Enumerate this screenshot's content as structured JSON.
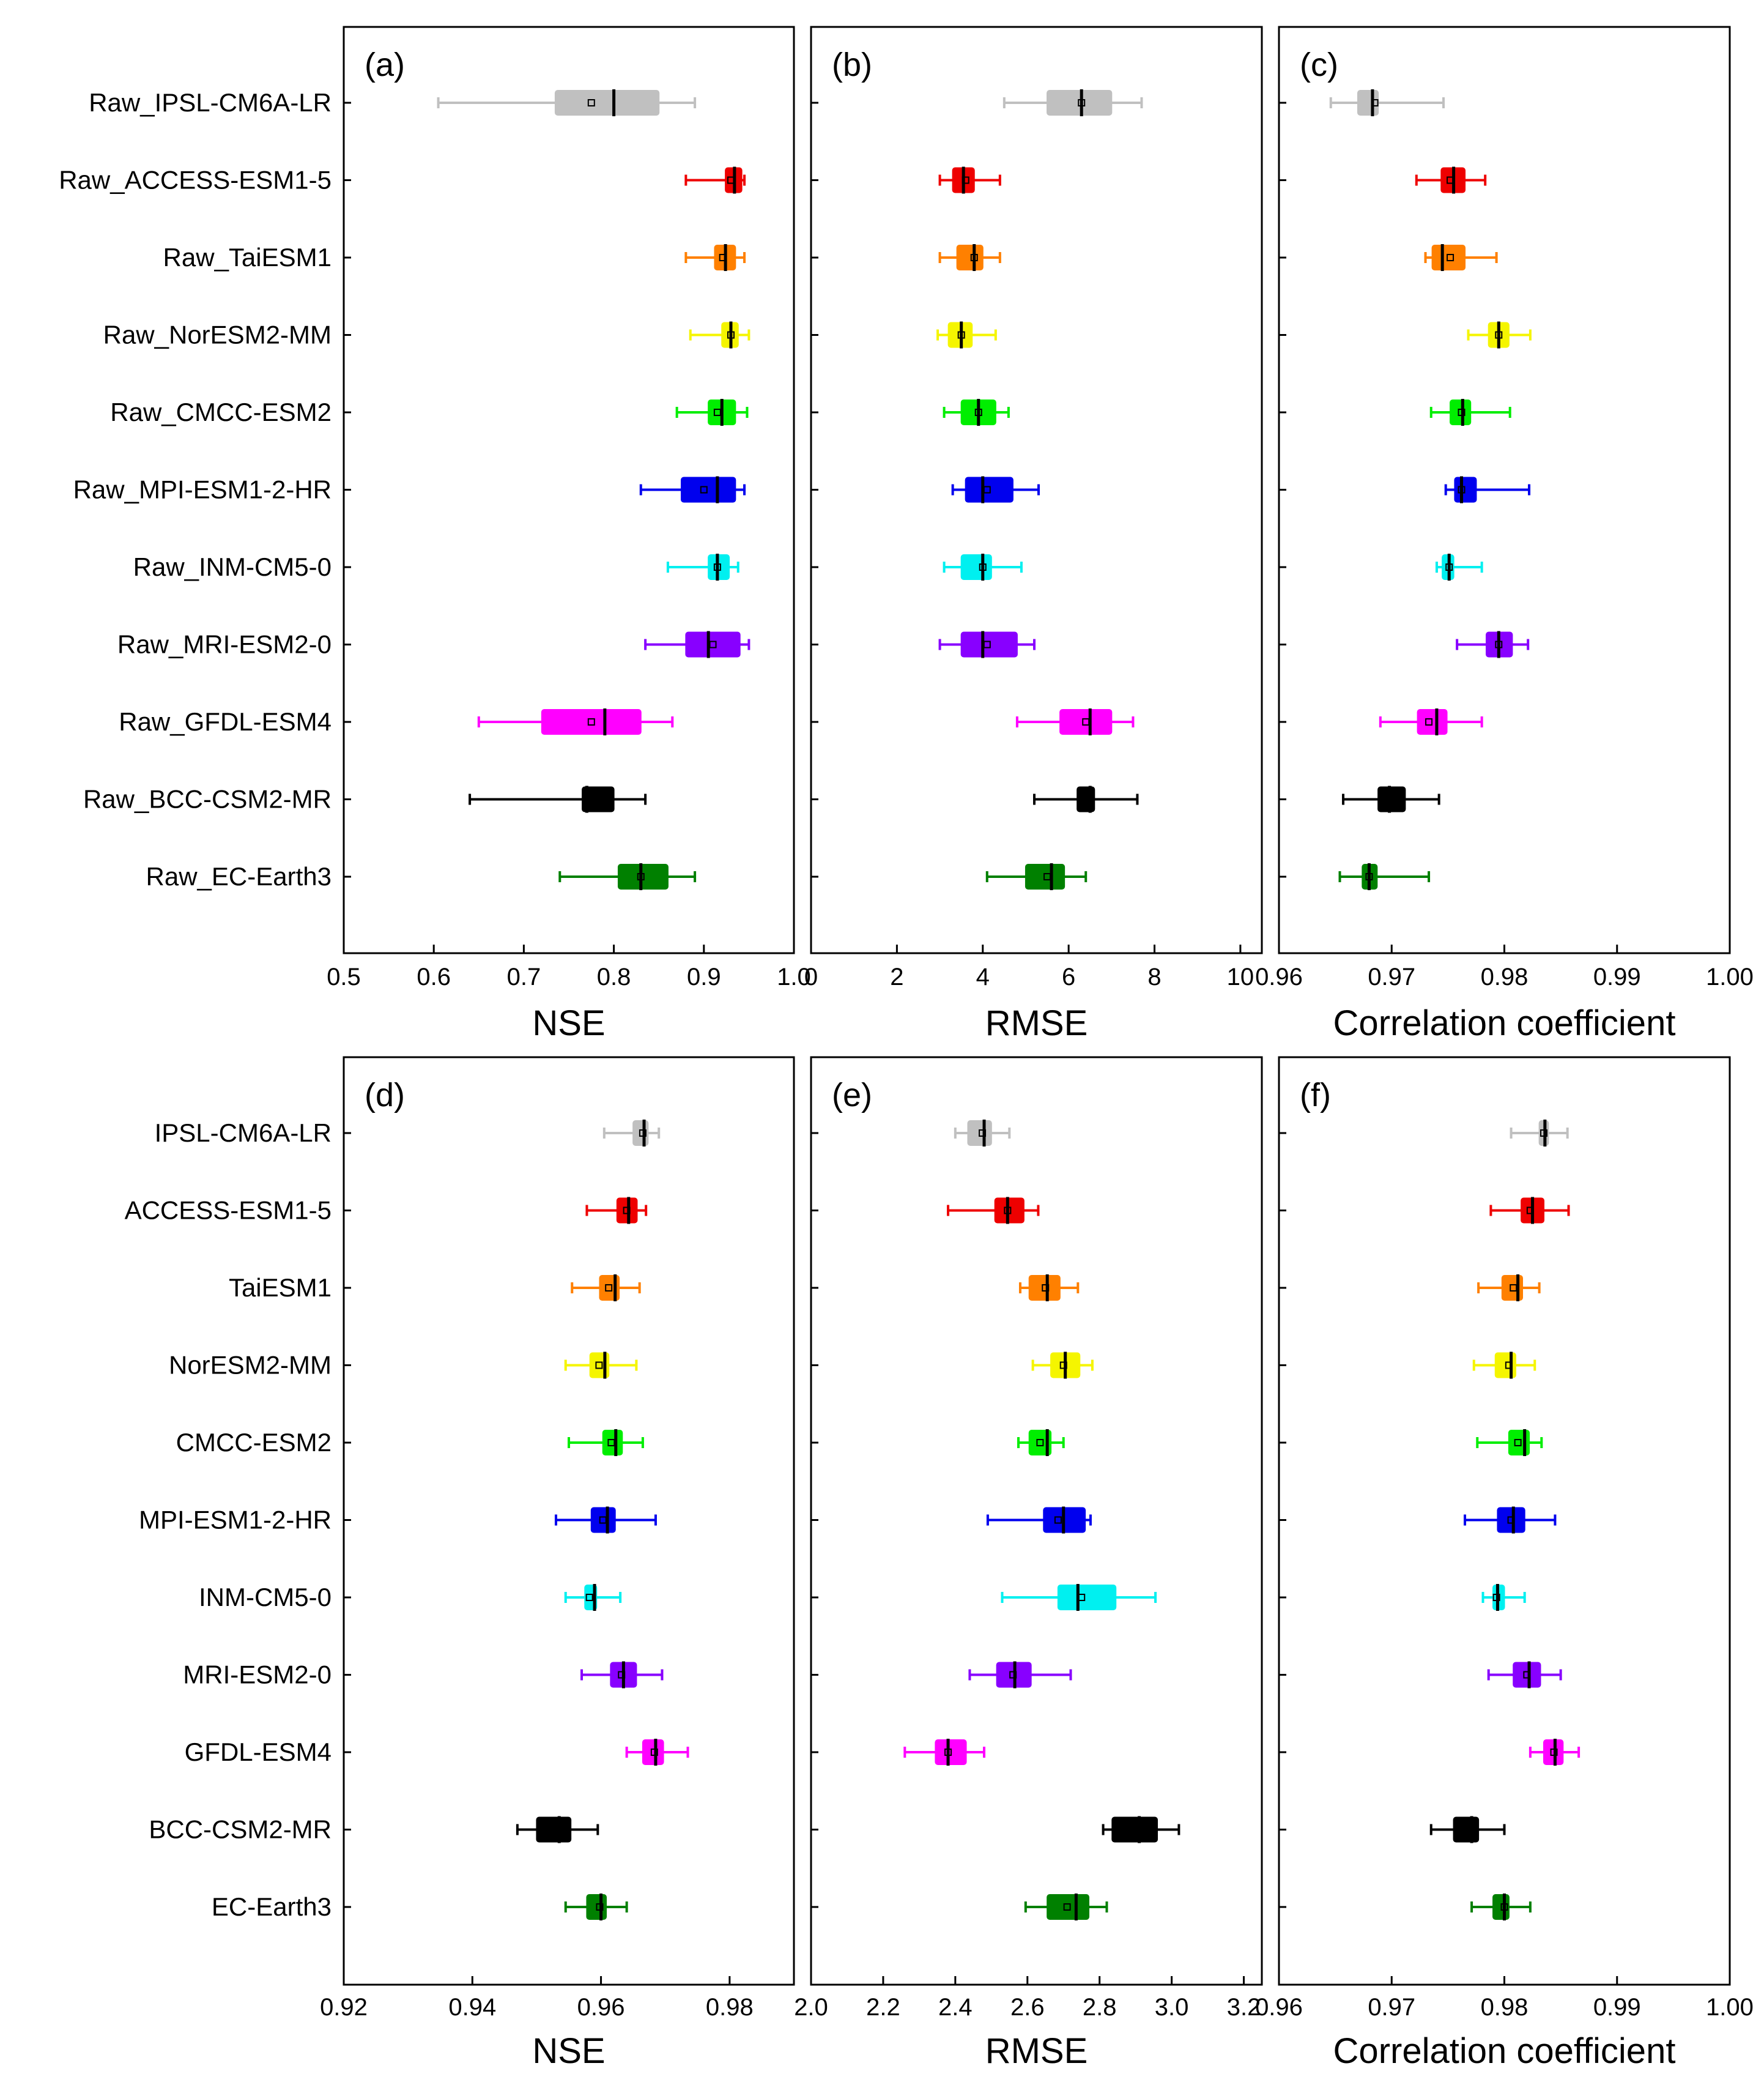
{
  "chart_data": [
    {
      "panel": "(a)",
      "type": "box",
      "xlabel": "NSE",
      "xlim": [
        0.5,
        1.0
      ],
      "ticks": [
        0.5,
        0.6,
        0.7,
        0.8,
        0.9,
        1.0
      ],
      "tick_labels": [
        "0.5",
        "0.6",
        "0.7",
        "0.8",
        "0.9",
        "1.0"
      ],
      "models": [
        {
          "label": "Raw_IPSL-CM6A-LR",
          "color": "#c0c0c0",
          "wlo": 0.605,
          "q1": 0.735,
          "med": 0.8,
          "q3": 0.85,
          "whi": 0.89,
          "mean": 0.775
        },
        {
          "label": "Raw_ACCESS-ESM1-5",
          "color": "#ee0000",
          "wlo": 0.88,
          "q1": 0.924,
          "med": 0.934,
          "q3": 0.942,
          "whi": 0.945,
          "mean": 0.93
        },
        {
          "label": "Raw_TaiESM1",
          "color": "#ff8000",
          "wlo": 0.88,
          "q1": 0.912,
          "med": 0.924,
          "q3": 0.935,
          "whi": 0.945,
          "mean": 0.921
        },
        {
          "label": "Raw_NorESM2-MM",
          "color": "#f5f500",
          "wlo": 0.885,
          "q1": 0.92,
          "med": 0.93,
          "q3": 0.938,
          "whi": 0.95,
          "mean": 0.93
        },
        {
          "label": "Raw_CMCC-ESM2",
          "color": "#00ee00",
          "wlo": 0.87,
          "q1": 0.905,
          "med": 0.92,
          "q3": 0.935,
          "whi": 0.948,
          "mean": 0.915
        },
        {
          "label": "Raw_MPI-ESM1-2-HR",
          "color": "#0000ee",
          "wlo": 0.83,
          "q1": 0.875,
          "med": 0.915,
          "q3": 0.935,
          "whi": 0.945,
          "mean": 0.9
        },
        {
          "label": "Raw_INM-CM5-0",
          "color": "#00f0f0",
          "wlo": 0.86,
          "q1": 0.905,
          "med": 0.915,
          "q3": 0.928,
          "whi": 0.938,
          "mean": 0.915
        },
        {
          "label": "Raw_MRI-ESM2-0",
          "color": "#8800ff",
          "wlo": 0.835,
          "q1": 0.88,
          "med": 0.905,
          "q3": 0.94,
          "whi": 0.95,
          "mean": 0.91
        },
        {
          "label": "Raw_GFDL-ESM4",
          "color": "#ff00ff",
          "wlo": 0.65,
          "q1": 0.72,
          "med": 0.79,
          "q3": 0.83,
          "whi": 0.865,
          "mean": 0.775
        },
        {
          "label": "Raw_BCC-CSM2-MR",
          "color": "#000000",
          "wlo": 0.64,
          "q1": 0.765,
          "med": 0.77,
          "q3": 0.8,
          "whi": 0.835,
          "mean": 0.775
        },
        {
          "label": "Raw_EC-Earth3",
          "color": "#008000",
          "wlo": 0.74,
          "q1": 0.805,
          "med": 0.83,
          "q3": 0.86,
          "whi": 0.89,
          "mean": 0.83
        }
      ]
    },
    {
      "panel": "(b)",
      "type": "box",
      "xlabel": "RMSE",
      "xlim": [
        0,
        10.5
      ],
      "ticks": [
        0,
        2,
        4,
        6,
        8,
        10
      ],
      "tick_labels": [
        "0",
        "2",
        "4",
        "6",
        "8",
        "10"
      ],
      "models": [
        {
          "label": "Raw_IPSL-CM6A-LR",
          "color": "#c0c0c0",
          "wlo": 4.5,
          "q1": 5.5,
          "med": 6.3,
          "q3": 7.0,
          "whi": 7.7,
          "mean": 6.3
        },
        {
          "label": "Raw_ACCESS-ESM1-5",
          "color": "#ee0000",
          "wlo": 3.0,
          "q1": 3.3,
          "med": 3.55,
          "q3": 3.8,
          "whi": 4.4,
          "mean": 3.6
        },
        {
          "label": "Raw_TaiESM1",
          "color": "#ff8000",
          "wlo": 3.0,
          "q1": 3.4,
          "med": 3.8,
          "q3": 4.0,
          "whi": 4.4,
          "mean": 3.8
        },
        {
          "label": "Raw_NorESM2-MM",
          "color": "#f5f500",
          "wlo": 2.95,
          "q1": 3.2,
          "med": 3.5,
          "q3": 3.75,
          "whi": 4.3,
          "mean": 3.5
        },
        {
          "label": "Raw_CMCC-ESM2",
          "color": "#00ee00",
          "wlo": 3.1,
          "q1": 3.5,
          "med": 3.9,
          "q3": 4.3,
          "whi": 4.6,
          "mean": 3.9
        },
        {
          "label": "Raw_MPI-ESM1-2-HR",
          "color": "#0000ee",
          "wlo": 3.3,
          "q1": 3.6,
          "med": 4.0,
          "q3": 4.7,
          "whi": 5.3,
          "mean": 4.1
        },
        {
          "label": "Raw_INM-CM5-0",
          "color": "#00f0f0",
          "wlo": 3.1,
          "q1": 3.5,
          "med": 4.0,
          "q3": 4.2,
          "whi": 4.9,
          "mean": 4.0
        },
        {
          "label": "Raw_MRI-ESM2-0",
          "color": "#8800ff",
          "wlo": 3.0,
          "q1": 3.5,
          "med": 4.0,
          "q3": 4.8,
          "whi": 5.2,
          "mean": 4.1
        },
        {
          "label": "Raw_GFDL-ESM4",
          "color": "#ff00ff",
          "wlo": 4.8,
          "q1": 5.8,
          "med": 6.5,
          "q3": 7.0,
          "whi": 7.5,
          "mean": 6.4
        },
        {
          "label": "Raw_BCC-CSM2-MR",
          "color": "#000000",
          "wlo": 5.2,
          "q1": 6.2,
          "med": 6.5,
          "q3": 6.6,
          "whi": 7.6,
          "mean": 6.4
        },
        {
          "label": "Raw_EC-Earth3",
          "color": "#008000",
          "wlo": 4.1,
          "q1": 5.0,
          "med": 5.6,
          "q3": 5.9,
          "whi": 6.4,
          "mean": 5.5
        }
      ]
    },
    {
      "panel": "(c)",
      "type": "box",
      "xlabel": "Correlation coefficient",
      "xlim": [
        0.96,
        1.0
      ],
      "ticks": [
        0.96,
        0.97,
        0.98,
        0.99,
        1.0
      ],
      "tick_labels": [
        "0.96",
        "0.97",
        "0.98",
        "0.99",
        "1.00"
      ],
      "models": [
        {
          "label": "Raw_IPSL-CM6A-LR",
          "color": "#c0c0c0",
          "wlo": 0.9646,
          "q1": 0.967,
          "med": 0.9683,
          "q3": 0.9688,
          "whi": 0.9746,
          "mean": 0.9685
        },
        {
          "label": "Raw_ACCESS-ESM1-5",
          "color": "#ee0000",
          "wlo": 0.9722,
          "q1": 0.9744,
          "med": 0.9755,
          "q3": 0.9765,
          "whi": 0.9783,
          "mean": 0.9752
        },
        {
          "label": "Raw_TaiESM1",
          "color": "#ff8000",
          "wlo": 0.973,
          "q1": 0.9736,
          "med": 0.9745,
          "q3": 0.9765,
          "whi": 0.9793,
          "mean": 0.9752
        },
        {
          "label": "Raw_NorESM2-MM",
          "color": "#f5f500",
          "wlo": 0.9768,
          "q1": 0.9786,
          "med": 0.9795,
          "q3": 0.9804,
          "whi": 0.9823,
          "mean": 0.9795
        },
        {
          "label": "Raw_CMCC-ESM2",
          "color": "#00ee00",
          "wlo": 0.9735,
          "q1": 0.9752,
          "med": 0.9763,
          "q3": 0.977,
          "whi": 0.9805,
          "mean": 0.9762
        },
        {
          "label": "Raw_MPI-ESM1-2-HR",
          "color": "#0000ee",
          "wlo": 0.9748,
          "q1": 0.9756,
          "med": 0.9762,
          "q3": 0.9775,
          "whi": 0.9822,
          "mean": 0.9762
        },
        {
          "label": "Raw_INM-CM5-0",
          "color": "#00f0f0",
          "wlo": 0.974,
          "q1": 0.9745,
          "med": 0.9751,
          "q3": 0.9755,
          "whi": 0.978,
          "mean": 0.9751
        },
        {
          "label": "Raw_MRI-ESM2-0",
          "color": "#8800ff",
          "wlo": 0.9758,
          "q1": 0.9784,
          "med": 0.9795,
          "q3": 0.9807,
          "whi": 0.9821,
          "mean": 0.9795
        },
        {
          "label": "Raw_GFDL-ESM4",
          "color": "#ff00ff",
          "wlo": 0.969,
          "q1": 0.9723,
          "med": 0.974,
          "q3": 0.9749,
          "whi": 0.978,
          "mean": 0.9733
        },
        {
          "label": "Raw_BCC-CSM2-MR",
          "color": "#000000",
          "wlo": 0.9657,
          "q1": 0.9688,
          "med": 0.9698,
          "q3": 0.9712,
          "whi": 0.9742,
          "mean": 0.9696
        },
        {
          "label": "Raw_EC-Earth3",
          "color": "#008000",
          "wlo": 0.9654,
          "q1": 0.9674,
          "med": 0.968,
          "q3": 0.9687,
          "whi": 0.9733,
          "mean": 0.968
        }
      ]
    },
    {
      "panel": "(d)",
      "type": "box",
      "xlabel": "NSE",
      "xlim": [
        0.92,
        0.99
      ],
      "ticks": [
        0.92,
        0.94,
        0.96,
        0.98
      ],
      "tick_labels": [
        "0.92",
        "0.94",
        "0.96",
        "0.98"
      ],
      "models": [
        {
          "label": "IPSL-CM6A-LR",
          "color": "#c0c0c0",
          "wlo": 0.9605,
          "q1": 0.965,
          "med": 0.9667,
          "q3": 0.9673,
          "whi": 0.969,
          "mean": 0.9665
        },
        {
          "label": "ACCESS-ESM1-5",
          "color": "#ee0000",
          "wlo": 0.9578,
          "q1": 0.9625,
          "med": 0.9643,
          "q3": 0.9656,
          "whi": 0.967,
          "mean": 0.964
        },
        {
          "label": "TaiESM1",
          "color": "#ff8000",
          "wlo": 0.9555,
          "q1": 0.9598,
          "med": 0.9622,
          "q3": 0.9628,
          "whi": 0.966,
          "mean": 0.9612
        },
        {
          "label": "NorESM2-MM",
          "color": "#f5f500",
          "wlo": 0.9545,
          "q1": 0.9583,
          "med": 0.9606,
          "q3": 0.9612,
          "whi": 0.9655,
          "mean": 0.9597
        },
        {
          "label": "CMCC-ESM2",
          "color": "#00ee00",
          "wlo": 0.955,
          "q1": 0.9603,
          "med": 0.9623,
          "q3": 0.9633,
          "whi": 0.9665,
          "mean": 0.9616
        },
        {
          "label": "MPI-ESM1-2-HR",
          "color": "#0000ee",
          "wlo": 0.953,
          "q1": 0.9585,
          "med": 0.961,
          "q3": 0.9622,
          "whi": 0.9685,
          "mean": 0.9603
        },
        {
          "label": "INM-CM5-0",
          "color": "#00f0f0",
          "wlo": 0.9545,
          "q1": 0.9575,
          "med": 0.959,
          "q3": 0.9593,
          "whi": 0.963,
          "mean": 0.9582
        },
        {
          "label": "MRI-ESM2-0",
          "color": "#8800ff",
          "wlo": 0.957,
          "q1": 0.9615,
          "med": 0.9635,
          "q3": 0.9655,
          "whi": 0.9695,
          "mean": 0.9632
        },
        {
          "label": "GFDL-ESM4",
          "color": "#ff00ff",
          "wlo": 0.964,
          "q1": 0.9665,
          "med": 0.9685,
          "q3": 0.9697,
          "whi": 0.9735,
          "mean": 0.9683
        },
        {
          "label": "BCC-CSM2-MR",
          "color": "#000000",
          "wlo": 0.947,
          "q1": 0.95,
          "med": 0.9535,
          "q3": 0.9553,
          "whi": 0.9595,
          "mean": 0.9525
        },
        {
          "label": "EC-Earth3",
          "color": "#008000",
          "wlo": 0.9545,
          "q1": 0.9578,
          "med": 0.96,
          "q3": 0.9608,
          "whi": 0.964,
          "mean": 0.9598
        }
      ]
    },
    {
      "panel": "(e)",
      "type": "box",
      "xlabel": "RMSE",
      "xlim": [
        2.0,
        3.25
      ],
      "ticks": [
        2.0,
        2.2,
        2.4,
        2.6,
        2.8,
        3.0,
        3.2
      ],
      "tick_labels": [
        "2.0",
        "2.2",
        "2.4",
        "2.6",
        "2.8",
        "3.0",
        "3.2"
      ],
      "models": [
        {
          "label": "IPSL-CM6A-LR",
          "color": "#c0c0c0",
          "wlo": 2.4,
          "q1": 2.435,
          "med": 2.48,
          "q3": 2.5,
          "whi": 2.55,
          "mean": 2.475
        },
        {
          "label": "ACCESS-ESM1-5",
          "color": "#ee0000",
          "wlo": 2.38,
          "q1": 2.51,
          "med": 2.545,
          "q3": 2.59,
          "whi": 2.63,
          "mean": 2.545
        },
        {
          "label": "TaiESM1",
          "color": "#ff8000",
          "wlo": 2.58,
          "q1": 2.605,
          "med": 2.655,
          "q3": 2.69,
          "whi": 2.74,
          "mean": 2.65
        },
        {
          "label": "NorESM2-MM",
          "color": "#f5f500",
          "wlo": 2.615,
          "q1": 2.665,
          "med": 2.705,
          "q3": 2.745,
          "whi": 2.78,
          "mean": 2.7
        },
        {
          "label": "CMCC-ESM2",
          "color": "#00ee00",
          "wlo": 2.575,
          "q1": 2.605,
          "med": 2.655,
          "q3": 2.665,
          "whi": 2.7,
          "mean": 2.635
        },
        {
          "label": "MPI-ESM1-2-HR",
          "color": "#0000ee",
          "wlo": 2.49,
          "q1": 2.645,
          "med": 2.7,
          "q3": 2.76,
          "whi": 2.775,
          "mean": 2.685
        },
        {
          "label": "INM-CM5-0",
          "color": "#00f0f0",
          "wlo": 2.53,
          "q1": 2.685,
          "med": 2.74,
          "q3": 2.845,
          "whi": 2.955,
          "mean": 2.75
        },
        {
          "label": "MRI-ESM2-0",
          "color": "#8800ff",
          "wlo": 2.44,
          "q1": 2.515,
          "med": 2.565,
          "q3": 2.61,
          "whi": 2.72,
          "mean": 2.56
        },
        {
          "label": "GFDL-ESM4",
          "color": "#ff00ff",
          "wlo": 2.26,
          "q1": 2.345,
          "med": 2.38,
          "q3": 2.43,
          "whi": 2.48,
          "mean": 2.38
        },
        {
          "label": "BCC-CSM2-MR",
          "color": "#000000",
          "wlo": 2.81,
          "q1": 2.835,
          "med": 2.91,
          "q3": 2.96,
          "whi": 3.02,
          "mean": 2.9
        },
        {
          "label": "EC-Earth3",
          "color": "#008000",
          "wlo": 2.595,
          "q1": 2.655,
          "med": 2.735,
          "q3": 2.77,
          "whi": 2.82,
          "mean": 2.71
        }
      ]
    },
    {
      "panel": "(f)",
      "type": "box",
      "xlabel": "Correlation coefficient",
      "xlim": [
        0.96,
        1.0
      ],
      "ticks": [
        0.96,
        0.97,
        0.98,
        0.99,
        1.0
      ],
      "tick_labels": [
        "0.96",
        "0.97",
        "0.98",
        "0.99",
        "1.00"
      ],
      "models": [
        {
          "label": "IPSL-CM6A-LR",
          "color": "#c0c0c0",
          "wlo": 0.9806,
          "q1": 0.9831,
          "med": 0.9836,
          "q3": 0.9839,
          "whi": 0.9856,
          "mean": 0.9835
        },
        {
          "label": "ACCESS-ESM1-5",
          "color": "#ee0000",
          "wlo": 0.9788,
          "q1": 0.9815,
          "med": 0.9825,
          "q3": 0.9835,
          "whi": 0.9857,
          "mean": 0.9823
        },
        {
          "label": "TaiESM1",
          "color": "#ff8000",
          "wlo": 0.9777,
          "q1": 0.9798,
          "med": 0.9812,
          "q3": 0.9816,
          "whi": 0.9831,
          "mean": 0.9808
        },
        {
          "label": "NorESM2-MM",
          "color": "#f5f500",
          "wlo": 0.9773,
          "q1": 0.9792,
          "med": 0.9806,
          "q3": 0.981,
          "whi": 0.9827,
          "mean": 0.9804
        },
        {
          "label": "CMCC-ESM2",
          "color": "#00ee00",
          "wlo": 0.9776,
          "q1": 0.9804,
          "med": 0.9818,
          "q3": 0.9822,
          "whi": 0.9833,
          "mean": 0.9812
        },
        {
          "label": "MPI-ESM1-2-HR",
          "color": "#0000ee",
          "wlo": 0.9765,
          "q1": 0.9794,
          "med": 0.9808,
          "q3": 0.9818,
          "whi": 0.9845,
          "mean": 0.9806
        },
        {
          "label": "INM-CM5-0",
          "color": "#00f0f0",
          "wlo": 0.9781,
          "q1": 0.979,
          "med": 0.9794,
          "q3": 0.98,
          "whi": 0.9818,
          "mean": 0.9793
        },
        {
          "label": "MRI-ESM2-0",
          "color": "#8800ff",
          "wlo": 0.9786,
          "q1": 0.9808,
          "med": 0.9822,
          "q3": 0.9832,
          "whi": 0.985,
          "mean": 0.982
        },
        {
          "label": "GFDL-ESM4",
          "color": "#ff00ff",
          "wlo": 0.9823,
          "q1": 0.9835,
          "med": 0.9845,
          "q3": 0.9852,
          "whi": 0.9866,
          "mean": 0.9844
        },
        {
          "label": "BCC-CSM2-MR",
          "color": "#000000",
          "wlo": 0.9735,
          "q1": 0.9755,
          "med": 0.9771,
          "q3": 0.9777,
          "whi": 0.98,
          "mean": 0.9768
        },
        {
          "label": "EC-Earth3",
          "color": "#008000",
          "wlo": 0.9771,
          "q1": 0.979,
          "med": 0.98,
          "q3": 0.9804,
          "whi": 0.9823,
          "mean": 0.98
        }
      ]
    }
  ]
}
